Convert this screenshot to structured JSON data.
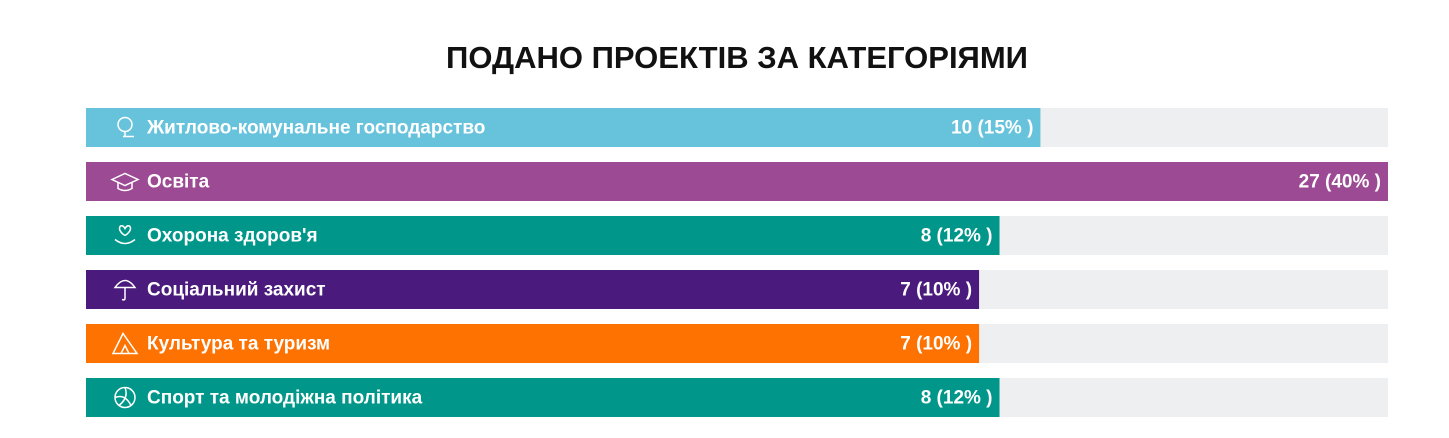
{
  "chart_data": {
    "type": "bar",
    "orientation": "horizontal",
    "title": "ПОДАНО ПРОЕКТІВ ЗА КАТЕГОРІЯМИ",
    "categories": [
      "Житлово-комунальне господарство",
      "Освіта",
      "Охорона здоров'я",
      "Соціальний захист",
      "Культура та туризм",
      "Спорт та молодіжна політика"
    ],
    "values": [
      10,
      27,
      8,
      7,
      7,
      8
    ],
    "value_labels": [
      "10 (15% )",
      "27 (40% )",
      "8 (12% )",
      "7 (10% )",
      "7 (10% )",
      "8 (12% )"
    ],
    "colors": [
      "#67c2dc",
      "#9c4a94",
      "#00978a",
      "#4a1a7c",
      "#fd7200",
      "#00978a"
    ],
    "track_color": "#eeeff1"
  }
}
